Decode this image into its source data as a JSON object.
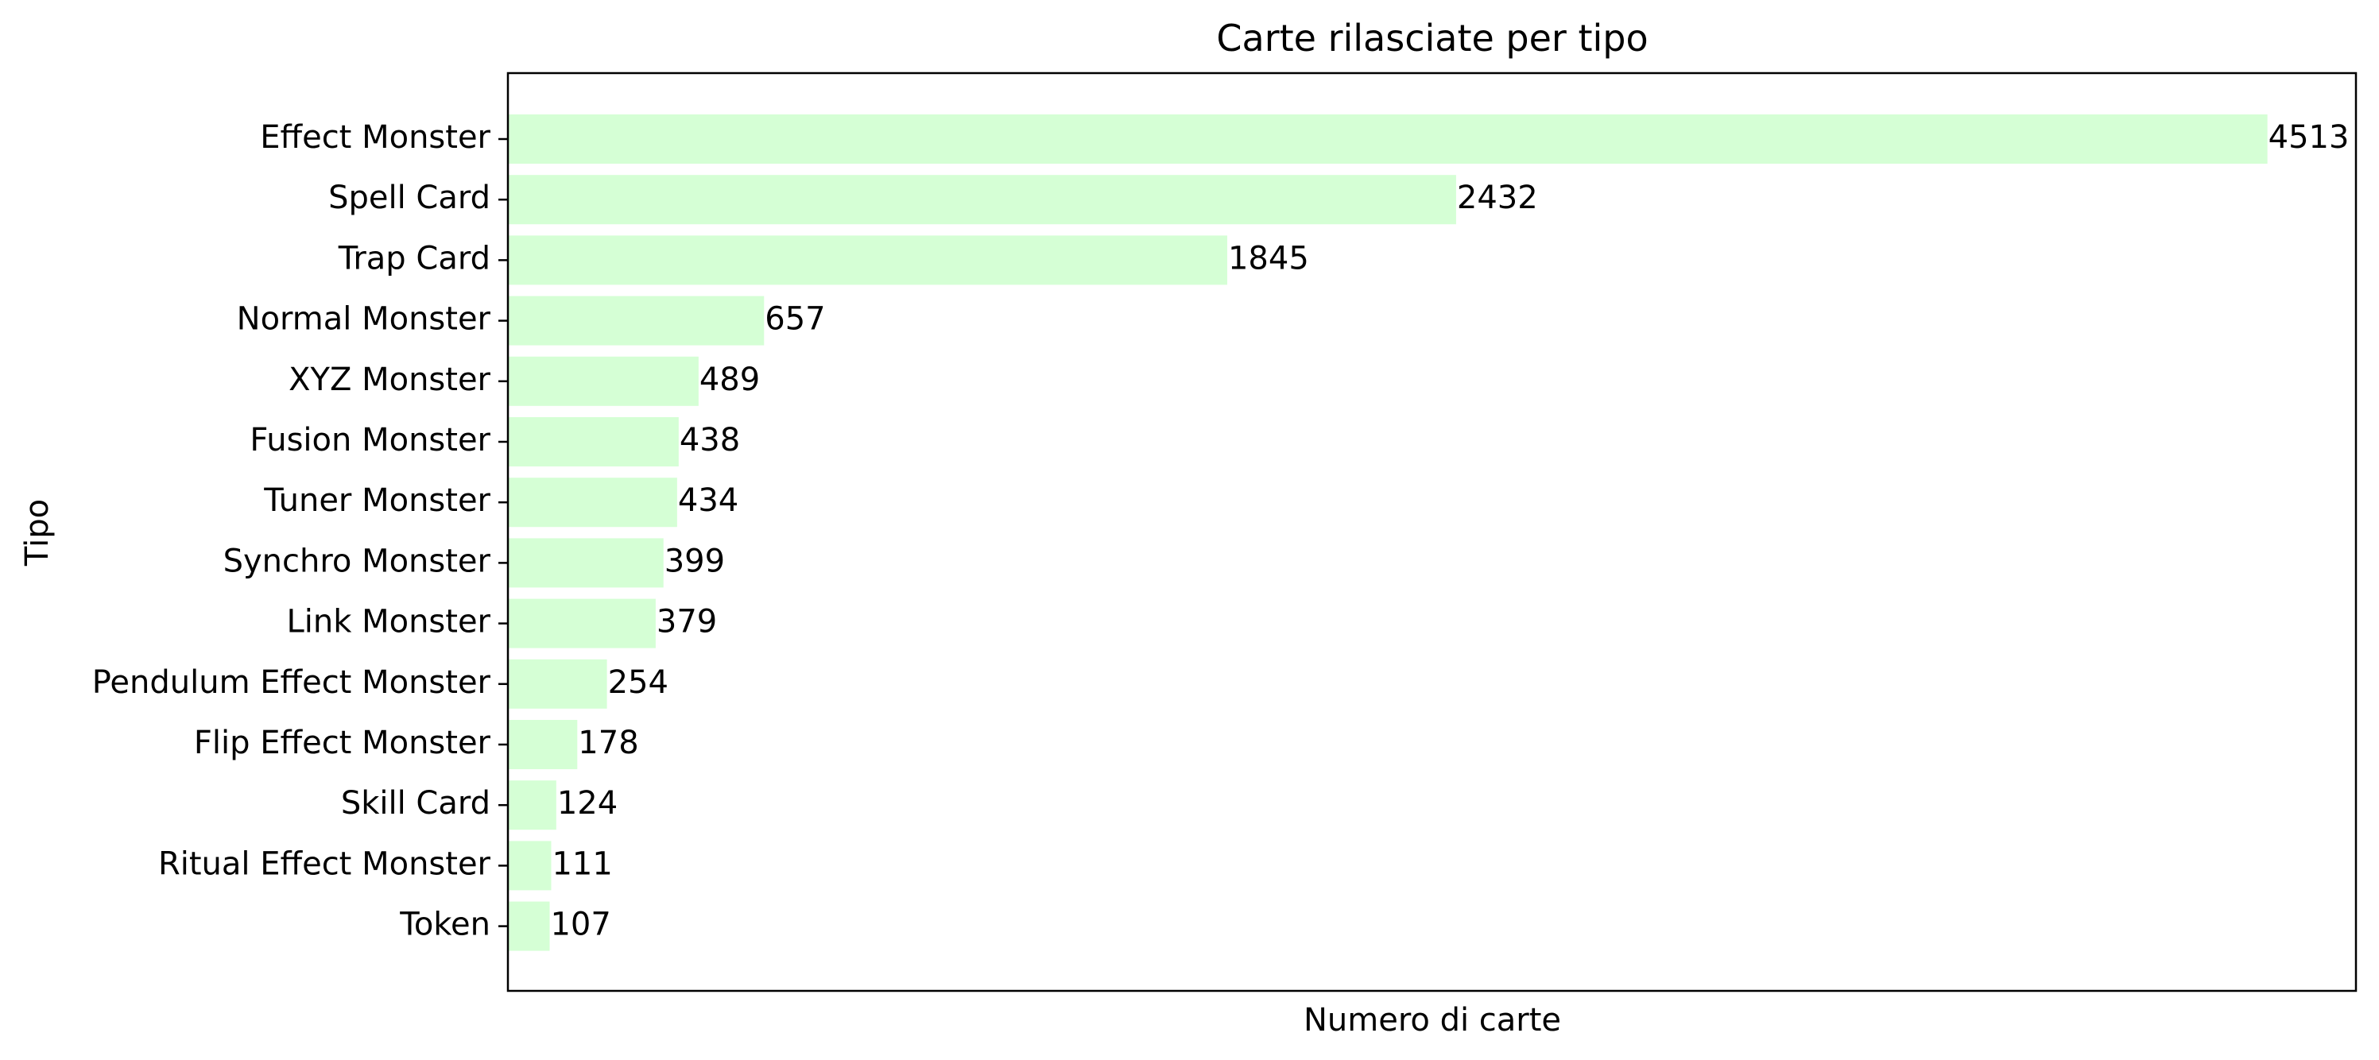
{
  "chart_data": {
    "type": "bar",
    "orientation": "horizontal",
    "title": "Carte rilasciate per tipo",
    "xlabel": "Numero di carte",
    "ylabel": "Tipo",
    "bar_color": "#d5ffd5",
    "xlim": [
      0,
      4740
    ],
    "x_ticks_visible": false,
    "grid": false,
    "categories": [
      "Effect Monster",
      "Spell Card",
      "Trap Card",
      "Normal Monster",
      "XYZ Monster",
      "Fusion Monster",
      "Tuner Monster",
      "Synchro Monster",
      "Link Monster",
      "Pendulum Effect Monster",
      "Flip Effect Monster",
      "Skill Card",
      "Ritual Effect Monster",
      "Token"
    ],
    "values": [
      4513,
      2432,
      1845,
      657,
      489,
      438,
      434,
      399,
      379,
      254,
      178,
      124,
      111,
      107
    ]
  }
}
